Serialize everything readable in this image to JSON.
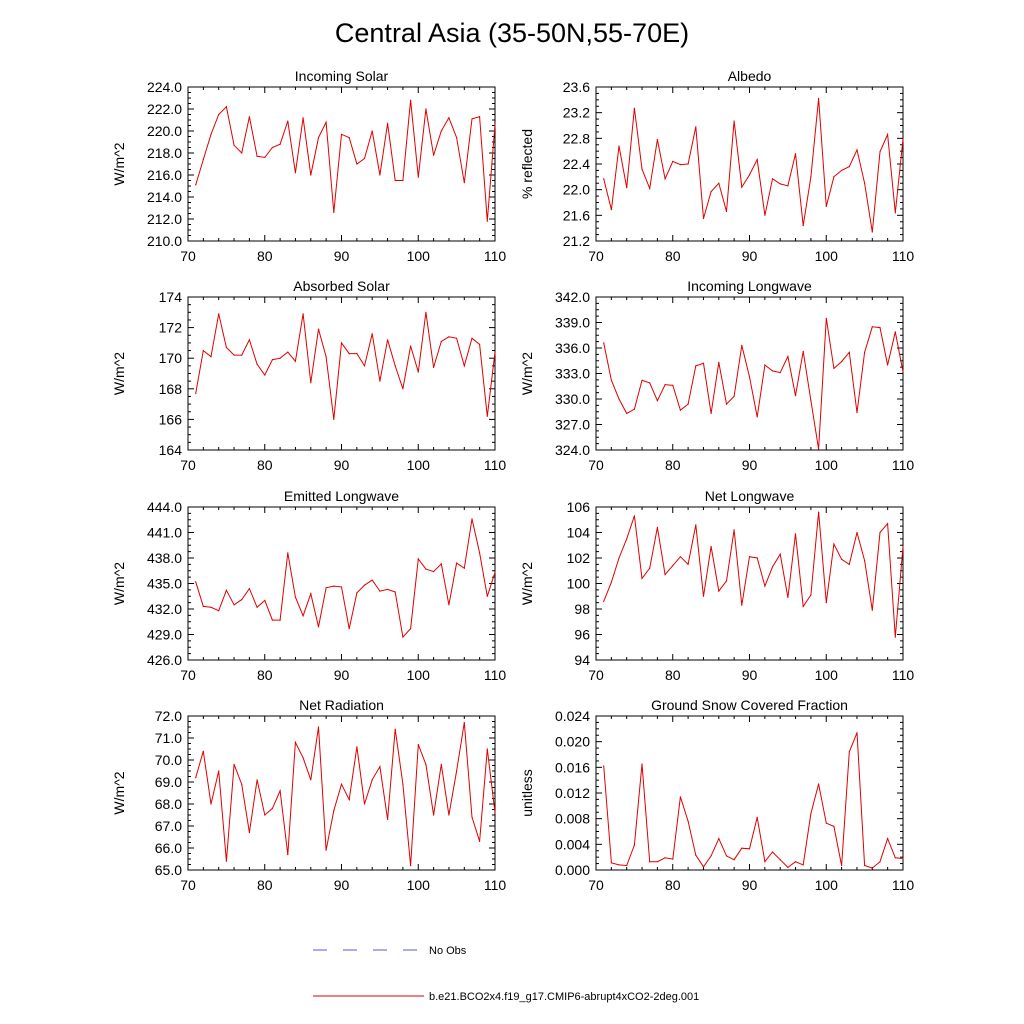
{
  "figure": {
    "title": "Central Asia (35-50N,55-70E)",
    "line_color": "#e00000",
    "obs_color": "#5a5ad0"
  },
  "legend": {
    "obs_label": "No Obs",
    "model_label": "b.e21.BCO2x4.f19_g17.CMIP6-abrupt4xCO2-2deg.001"
  },
  "chart_data": [
    {
      "type": "line",
      "title": "Incoming Solar",
      "ylabel": "W/m^2",
      "xlim": [
        70,
        110
      ],
      "ylim": [
        210,
        224
      ],
      "xticks": [
        70,
        80,
        90,
        100,
        110
      ],
      "yticks": [
        210,
        212,
        214,
        216,
        218,
        220,
        222,
        224
      ],
      "ytick_labels": [
        "210.0",
        "212.0",
        "214.0",
        "216.0",
        "218.0",
        "220.0",
        "222.0",
        "224.0"
      ],
      "x": [
        71,
        72,
        73,
        74,
        75,
        76,
        77,
        78,
        79,
        80,
        81,
        82,
        83,
        84,
        85,
        86,
        87,
        88,
        89,
        90,
        91,
        92,
        93,
        94,
        95,
        96,
        97,
        98,
        99,
        100,
        101,
        102,
        103,
        104,
        105,
        106,
        107,
        108,
        109,
        110
      ],
      "values": [
        215.1,
        217.4,
        219.7,
        221.5,
        222.2,
        218.7,
        218.0,
        221.3,
        217.7,
        217.6,
        218.5,
        218.8,
        220.9,
        216.2,
        221.2,
        216.0,
        219.4,
        220.8,
        212.6,
        219.7,
        219.4,
        217.0,
        217.5,
        220.0,
        216.0,
        220.7,
        215.5,
        215.5,
        222.8,
        215.8,
        222.0,
        217.8,
        220.0,
        221.2,
        219.4,
        215.3,
        221.1,
        221.3,
        211.8,
        220.6
      ]
    },
    {
      "type": "line",
      "title": "Albedo",
      "ylabel": "% reflected",
      "xlim": [
        70,
        110
      ],
      "ylim": [
        21.2,
        23.6
      ],
      "xticks": [
        70,
        80,
        90,
        100,
        110
      ],
      "yticks": [
        21.2,
        21.6,
        22.0,
        22.4,
        22.8,
        23.2,
        23.6
      ],
      "ytick_labels": [
        "21.2",
        "21.6",
        "22.0",
        "22.4",
        "22.8",
        "23.2",
        "23.6"
      ],
      "x": [
        71,
        72,
        73,
        74,
        75,
        76,
        77,
        78,
        79,
        80,
        81,
        82,
        83,
        84,
        85,
        86,
        87,
        88,
        89,
        90,
        91,
        92,
        93,
        94,
        95,
        96,
        97,
        98,
        99,
        100,
        101,
        102,
        103,
        104,
        105,
        106,
        107,
        108,
        109,
        110
      ],
      "values": [
        22.17,
        21.69,
        22.68,
        22.03,
        23.27,
        22.32,
        22.02,
        22.78,
        22.17,
        22.44,
        22.39,
        22.4,
        22.98,
        21.55,
        21.97,
        22.1,
        21.66,
        23.07,
        22.04,
        22.23,
        22.47,
        21.6,
        22.17,
        22.09,
        22.06,
        22.56,
        21.44,
        22.2,
        23.42,
        21.74,
        22.2,
        22.3,
        22.36,
        22.62,
        22.1,
        21.34,
        22.59,
        22.86,
        21.64,
        22.79
      ]
    },
    {
      "type": "line",
      "title": "Absorbed Solar",
      "ylabel": "W/m^2",
      "xlim": [
        70,
        110
      ],
      "ylim": [
        164,
        174
      ],
      "xticks": [
        70,
        80,
        90,
        100,
        110
      ],
      "yticks": [
        164,
        166,
        168,
        170,
        172,
        174
      ],
      "ytick_labels": [
        "164",
        "166",
        "168",
        "170",
        "172",
        "174"
      ],
      "x": [
        71,
        72,
        73,
        74,
        75,
        76,
        77,
        78,
        79,
        80,
        81,
        82,
        83,
        84,
        85,
        86,
        87,
        88,
        89,
        90,
        91,
        92,
        93,
        94,
        95,
        96,
        97,
        98,
        99,
        100,
        101,
        102,
        103,
        104,
        105,
        106,
        107,
        108,
        109,
        110
      ],
      "values": [
        167.7,
        170.5,
        170.1,
        172.9,
        170.7,
        170.2,
        170.2,
        171.2,
        169.6,
        168.9,
        169.9,
        170.0,
        170.4,
        169.8,
        172.9,
        168.4,
        171.9,
        170.1,
        166.0,
        171.0,
        170.3,
        170.3,
        169.5,
        171.6,
        168.5,
        171.2,
        169.5,
        168.0,
        170.8,
        169.1,
        173.0,
        169.4,
        171.1,
        171.4,
        171.3,
        169.5,
        171.3,
        170.9,
        166.2,
        170.4
      ]
    },
    {
      "type": "line",
      "title": "Incoming Longwave",
      "ylabel": "W/m^2",
      "xlim": [
        70,
        110
      ],
      "ylim": [
        324,
        342
      ],
      "xticks": [
        70,
        80,
        90,
        100,
        110
      ],
      "yticks": [
        324,
        327,
        330,
        333,
        336,
        339,
        342
      ],
      "ytick_labels": [
        "324.0",
        "327.0",
        "330.0",
        "333.0",
        "336.0",
        "339.0",
        "342.0"
      ],
      "x": [
        71,
        72,
        73,
        74,
        75,
        76,
        77,
        78,
        79,
        80,
        81,
        82,
        83,
        84,
        85,
        86,
        87,
        88,
        89,
        90,
        91,
        92,
        93,
        94,
        95,
        96,
        97,
        98,
        99,
        100,
        101,
        102,
        103,
        104,
        105,
        106,
        107,
        108,
        109,
        110
      ],
      "values": [
        336.6,
        332.2,
        330.0,
        328.3,
        328.8,
        332.2,
        331.9,
        329.8,
        331.7,
        331.6,
        328.7,
        329.4,
        333.9,
        334.2,
        328.3,
        334.3,
        329.4,
        330.3,
        336.3,
        332.6,
        327.9,
        334.0,
        333.3,
        333.1,
        335.0,
        330.4,
        335.6,
        329.8,
        324.1,
        339.5,
        333.6,
        334.4,
        335.5,
        328.4,
        335.5,
        338.5,
        338.4,
        334.0,
        337.9,
        333.2
      ]
    },
    {
      "type": "line",
      "title": "Emitted Longwave",
      "ylabel": "W/m^2",
      "xlim": [
        70,
        110
      ],
      "ylim": [
        426,
        444
      ],
      "xticks": [
        70,
        80,
        90,
        100,
        110
      ],
      "yticks": [
        426,
        429,
        432,
        435,
        438,
        441,
        444
      ],
      "ytick_labels": [
        "426.0",
        "429.0",
        "432.0",
        "435.0",
        "438.0",
        "441.0",
        "444.0"
      ],
      "x": [
        71,
        72,
        73,
        74,
        75,
        76,
        77,
        78,
        79,
        80,
        81,
        82,
        83,
        84,
        85,
        86,
        87,
        88,
        89,
        90,
        91,
        92,
        93,
        94,
        95,
        96,
        97,
        98,
        99,
        100,
        101,
        102,
        103,
        104,
        105,
        106,
        107,
        108,
        109,
        110
      ],
      "values": [
        435.2,
        432.3,
        432.2,
        431.8,
        434.2,
        432.5,
        433.1,
        434.4,
        432.2,
        433.0,
        430.7,
        430.7,
        438.6,
        433.4,
        431.2,
        433.8,
        429.9,
        434.5,
        434.7,
        434.6,
        429.7,
        433.9,
        434.8,
        435.4,
        434.1,
        434.3,
        434.0,
        428.7,
        429.7,
        437.9,
        436.7,
        436.4,
        437.3,
        432.5,
        437.4,
        436.8,
        442.6,
        438.6,
        433.5,
        436.3
      ]
    },
    {
      "type": "line",
      "title": "Net Longwave",
      "ylabel": "W/m^2",
      "xlim": [
        70,
        110
      ],
      "ylim": [
        94,
        106
      ],
      "xticks": [
        70,
        80,
        90,
        100,
        110
      ],
      "yticks": [
        94,
        96,
        98,
        100,
        102,
        104,
        106
      ],
      "ytick_labels": [
        "94",
        "96",
        "98",
        "100",
        "102",
        "104",
        "106"
      ],
      "x": [
        71,
        72,
        73,
        74,
        75,
        76,
        77,
        78,
        79,
        80,
        81,
        82,
        83,
        84,
        85,
        86,
        87,
        88,
        89,
        90,
        91,
        92,
        93,
        94,
        95,
        96,
        97,
        98,
        99,
        100,
        101,
        102,
        103,
        104,
        105,
        106,
        107,
        108,
        109,
        110
      ],
      "values": [
        98.6,
        100.1,
        102.0,
        103.5,
        105.3,
        100.4,
        101.2,
        104.4,
        100.7,
        101.4,
        102.1,
        101.5,
        104.6,
        99.0,
        102.9,
        99.4,
        100.2,
        104.2,
        98.3,
        102.1,
        102.0,
        99.8,
        101.3,
        102.3,
        98.9,
        103.9,
        98.2,
        99.1,
        105.6,
        98.5,
        103.1,
        101.9,
        101.5,
        104.0,
        101.8,
        97.9,
        104.0,
        104.7,
        95.8,
        102.9
      ]
    },
    {
      "type": "line",
      "title": "Net Radiation",
      "ylabel": "W/m^2",
      "xlim": [
        70,
        110
      ],
      "ylim": [
        65,
        72
      ],
      "xticks": [
        70,
        80,
        90,
        100,
        110
      ],
      "yticks": [
        65,
        66,
        67,
        68,
        69,
        70,
        71,
        72
      ],
      "ytick_labels": [
        "65.0",
        "66.0",
        "67.0",
        "68.0",
        "69.0",
        "70.0",
        "71.0",
        "72.0"
      ],
      "x": [
        71,
        72,
        73,
        74,
        75,
        76,
        77,
        78,
        79,
        80,
        81,
        82,
        83,
        84,
        85,
        86,
        87,
        88,
        89,
        90,
        91,
        92,
        93,
        94,
        95,
        96,
        97,
        98,
        99,
        100,
        101,
        102,
        103,
        104,
        105,
        106,
        107,
        108,
        109,
        110
      ],
      "values": [
        69.2,
        70.4,
        68.0,
        69.5,
        65.4,
        69.8,
        68.9,
        66.7,
        69.1,
        67.5,
        67.8,
        68.6,
        65.7,
        70.8,
        70.1,
        69.1,
        71.5,
        65.9,
        67.7,
        68.9,
        68.2,
        70.6,
        68.0,
        69.1,
        69.7,
        67.3,
        71.4,
        68.9,
        65.2,
        70.7,
        69.8,
        67.5,
        69.8,
        67.5,
        69.5,
        71.7,
        67.4,
        66.3,
        70.5,
        67.6
      ]
    },
    {
      "type": "line",
      "title": "Ground Snow Covered Fraction",
      "ylabel": "unitless",
      "xlim": [
        70,
        110
      ],
      "ylim": [
        0,
        0.024
      ],
      "xticks": [
        70,
        80,
        90,
        100,
        110
      ],
      "yticks": [
        0,
        0.004,
        0.008,
        0.012,
        0.016,
        0.02,
        0.024
      ],
      "ytick_labels": [
        "0.000",
        "0.004",
        "0.008",
        "0.012",
        "0.016",
        "0.020",
        "0.024"
      ],
      "x": [
        71,
        72,
        73,
        74,
        75,
        76,
        77,
        78,
        79,
        80,
        81,
        82,
        83,
        84,
        85,
        86,
        87,
        88,
        89,
        90,
        91,
        92,
        93,
        94,
        95,
        96,
        97,
        98,
        99,
        100,
        101,
        102,
        103,
        104,
        105,
        106,
        107,
        108,
        109,
        110
      ],
      "values": [
        0.0162,
        0.0011,
        0.0008,
        0.0007,
        0.0039,
        0.0165,
        0.0013,
        0.0013,
        0.0019,
        0.0017,
        0.0114,
        0.0076,
        0.0023,
        0.0005,
        0.0022,
        0.0049,
        0.0022,
        0.0016,
        0.0034,
        0.0033,
        0.0082,
        0.0013,
        0.0028,
        0.0016,
        0.0004,
        0.0013,
        0.0008,
        0.0088,
        0.0134,
        0.0073,
        0.0068,
        0.0007,
        0.0184,
        0.0214,
        0.0007,
        0.0003,
        0.0013,
        0.0049,
        0.0019,
        0.0018
      ]
    }
  ]
}
